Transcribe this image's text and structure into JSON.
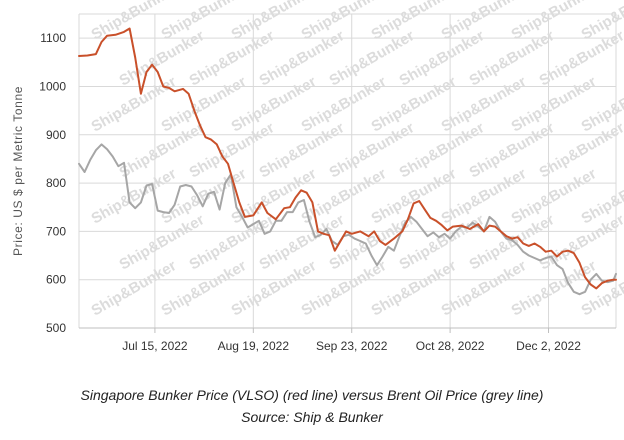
{
  "chart_data": {
    "type": "line",
    "ylabel": "Price: US $ per Metric Tonne",
    "ylim": [
      500,
      1150
    ],
    "yticks": [
      500,
      600,
      700,
      800,
      900,
      1000,
      1100
    ],
    "xlim": [
      "2022-06-18",
      "2022-12-26"
    ],
    "xticks": [
      {
        "date": "2022-07-15",
        "label": "Jul 15, 2022"
      },
      {
        "date": "2022-08-19",
        "label": "Aug 19, 2022"
      },
      {
        "date": "2022-09-23",
        "label": "Sep 23, 2022"
      },
      {
        "date": "2022-10-28",
        "label": "Oct 28, 2022"
      },
      {
        "date": "2022-12-02",
        "label": "Dec 2, 2022"
      }
    ],
    "grid": true,
    "watermark": "Ship&Bunker",
    "series": [
      {
        "color": "#c9502a",
        "points": [
          [
            "2022-06-18",
            1063
          ],
          [
            "2022-06-21",
            1064
          ],
          [
            "2022-06-24",
            1067
          ],
          [
            "2022-06-26",
            1092
          ],
          [
            "2022-06-28",
            1105
          ],
          [
            "2022-07-01",
            1107
          ],
          [
            "2022-07-04",
            1113
          ],
          [
            "2022-07-06",
            1120
          ],
          [
            "2022-07-08",
            1060
          ],
          [
            "2022-07-10",
            985
          ],
          [
            "2022-07-12",
            1030
          ],
          [
            "2022-07-14",
            1045
          ],
          [
            "2022-07-16",
            1030
          ],
          [
            "2022-07-18",
            1000
          ],
          [
            "2022-07-20",
            997
          ],
          [
            "2022-07-22",
            990
          ],
          [
            "2022-07-25",
            995
          ],
          [
            "2022-07-27",
            985
          ],
          [
            "2022-07-29",
            950
          ],
          [
            "2022-07-31",
            920
          ],
          [
            "2022-08-02",
            895
          ],
          [
            "2022-08-04",
            890
          ],
          [
            "2022-08-06",
            880
          ],
          [
            "2022-08-08",
            855
          ],
          [
            "2022-08-10",
            840
          ],
          [
            "2022-08-12",
            800
          ],
          [
            "2022-08-14",
            760
          ],
          [
            "2022-08-16",
            730
          ],
          [
            "2022-08-19",
            733
          ],
          [
            "2022-08-22",
            760
          ],
          [
            "2022-08-24",
            738
          ],
          [
            "2022-08-27",
            725
          ],
          [
            "2022-08-30",
            748
          ],
          [
            "2022-09-01",
            750
          ],
          [
            "2022-09-03",
            770
          ],
          [
            "2022-09-05",
            785
          ],
          [
            "2022-09-07",
            780
          ],
          [
            "2022-09-09",
            760
          ],
          [
            "2022-09-11",
            700
          ],
          [
            "2022-09-13",
            695
          ],
          [
            "2022-09-15",
            692
          ],
          [
            "2022-09-17",
            660
          ],
          [
            "2022-09-19",
            680
          ],
          [
            "2022-09-21",
            700
          ],
          [
            "2022-09-23",
            695
          ],
          [
            "2022-09-26",
            700
          ],
          [
            "2022-09-29",
            690
          ],
          [
            "2022-10-01",
            700
          ],
          [
            "2022-10-03",
            680
          ],
          [
            "2022-10-05",
            672
          ],
          [
            "2022-10-08",
            685
          ],
          [
            "2022-10-11",
            700
          ],
          [
            "2022-10-13",
            725
          ],
          [
            "2022-10-15",
            758
          ],
          [
            "2022-10-17",
            763
          ],
          [
            "2022-10-19",
            745
          ],
          [
            "2022-10-21",
            728
          ],
          [
            "2022-10-23",
            722
          ],
          [
            "2022-10-25",
            713
          ],
          [
            "2022-10-27",
            702
          ],
          [
            "2022-10-29",
            710
          ],
          [
            "2022-11-01",
            712
          ],
          [
            "2022-11-04",
            705
          ],
          [
            "2022-11-07",
            715
          ],
          [
            "2022-11-09",
            700
          ],
          [
            "2022-11-11",
            712
          ],
          [
            "2022-11-13",
            710
          ],
          [
            "2022-11-15",
            700
          ],
          [
            "2022-11-17",
            690
          ],
          [
            "2022-11-19",
            685
          ],
          [
            "2022-11-21",
            688
          ],
          [
            "2022-11-23",
            675
          ],
          [
            "2022-11-25",
            670
          ],
          [
            "2022-11-27",
            675
          ],
          [
            "2022-11-29",
            668
          ],
          [
            "2022-12-01",
            658
          ],
          [
            "2022-12-03",
            660
          ],
          [
            "2022-12-05",
            648
          ],
          [
            "2022-12-07",
            658
          ],
          [
            "2022-12-09",
            660
          ],
          [
            "2022-12-11",
            655
          ],
          [
            "2022-12-13",
            635
          ],
          [
            "2022-12-15",
            605
          ],
          [
            "2022-12-17",
            590
          ],
          [
            "2022-12-19",
            582
          ],
          [
            "2022-12-21",
            593
          ],
          [
            "2022-12-23",
            598
          ],
          [
            "2022-12-25",
            600
          ],
          [
            "2022-12-26",
            600
          ]
        ]
      },
      {
        "color": "#a6a6a6",
        "points": [
          [
            "2022-06-18",
            840
          ],
          [
            "2022-06-20",
            823
          ],
          [
            "2022-06-22",
            848
          ],
          [
            "2022-06-24",
            868
          ],
          [
            "2022-06-26",
            880
          ],
          [
            "2022-06-28",
            870
          ],
          [
            "2022-06-30",
            855
          ],
          [
            "2022-07-02",
            835
          ],
          [
            "2022-07-04",
            842
          ],
          [
            "2022-07-06",
            760
          ],
          [
            "2022-07-08",
            748
          ],
          [
            "2022-07-10",
            760
          ],
          [
            "2022-07-12",
            795
          ],
          [
            "2022-07-14",
            798
          ],
          [
            "2022-07-16",
            743
          ],
          [
            "2022-07-18",
            740
          ],
          [
            "2022-07-20",
            738
          ],
          [
            "2022-07-22",
            755
          ],
          [
            "2022-07-24",
            793
          ],
          [
            "2022-07-26",
            796
          ],
          [
            "2022-07-28",
            793
          ],
          [
            "2022-07-30",
            775
          ],
          [
            "2022-08-01",
            752
          ],
          [
            "2022-08-03",
            778
          ],
          [
            "2022-08-05",
            782
          ],
          [
            "2022-08-07",
            745
          ],
          [
            "2022-08-09",
            800
          ],
          [
            "2022-08-11",
            818
          ],
          [
            "2022-08-13",
            750
          ],
          [
            "2022-08-15",
            730
          ],
          [
            "2022-08-17",
            708
          ],
          [
            "2022-08-19",
            715
          ],
          [
            "2022-08-21",
            722
          ],
          [
            "2022-08-23",
            695
          ],
          [
            "2022-08-25",
            700
          ],
          [
            "2022-08-27",
            722
          ],
          [
            "2022-08-29",
            722
          ],
          [
            "2022-08-31",
            740
          ],
          [
            "2022-09-02",
            740
          ],
          [
            "2022-09-04",
            760
          ],
          [
            "2022-09-06",
            765
          ],
          [
            "2022-09-08",
            720
          ],
          [
            "2022-09-10",
            688
          ],
          [
            "2022-09-12",
            693
          ],
          [
            "2022-09-14",
            705
          ],
          [
            "2022-09-16",
            680
          ],
          [
            "2022-09-18",
            672
          ],
          [
            "2022-09-20",
            690
          ],
          [
            "2022-09-22",
            693
          ],
          [
            "2022-09-24",
            685
          ],
          [
            "2022-09-26",
            680
          ],
          [
            "2022-09-28",
            675
          ],
          [
            "2022-09-30",
            650
          ],
          [
            "2022-10-02",
            630
          ],
          [
            "2022-10-04",
            648
          ],
          [
            "2022-10-06",
            668
          ],
          [
            "2022-10-08",
            660
          ],
          [
            "2022-10-10",
            690
          ],
          [
            "2022-10-12",
            718
          ],
          [
            "2022-10-14",
            730
          ],
          [
            "2022-10-16",
            720
          ],
          [
            "2022-10-18",
            705
          ],
          [
            "2022-10-20",
            690
          ],
          [
            "2022-10-22",
            698
          ],
          [
            "2022-10-24",
            688
          ],
          [
            "2022-10-26",
            695
          ],
          [
            "2022-10-28",
            685
          ],
          [
            "2022-10-30",
            700
          ],
          [
            "2022-11-01",
            710
          ],
          [
            "2022-11-03",
            708
          ],
          [
            "2022-11-05",
            718
          ],
          [
            "2022-11-07",
            710
          ],
          [
            "2022-11-09",
            700
          ],
          [
            "2022-11-11",
            730
          ],
          [
            "2022-11-13",
            720
          ],
          [
            "2022-11-15",
            700
          ],
          [
            "2022-11-17",
            685
          ],
          [
            "2022-11-19",
            682
          ],
          [
            "2022-11-21",
            672
          ],
          [
            "2022-11-23",
            658
          ],
          [
            "2022-11-25",
            650
          ],
          [
            "2022-11-27",
            645
          ],
          [
            "2022-11-29",
            640
          ],
          [
            "2022-12-01",
            645
          ],
          [
            "2022-12-03",
            648
          ],
          [
            "2022-12-05",
            630
          ],
          [
            "2022-12-07",
            622
          ],
          [
            "2022-12-09",
            593
          ],
          [
            "2022-12-11",
            575
          ],
          [
            "2022-12-13",
            570
          ],
          [
            "2022-12-15",
            575
          ],
          [
            "2022-12-17",
            600
          ],
          [
            "2022-12-19",
            612
          ],
          [
            "2022-12-21",
            598
          ],
          [
            "2022-12-23",
            595
          ],
          [
            "2022-12-25",
            598
          ],
          [
            "2022-12-26",
            612
          ]
        ]
      }
    ]
  },
  "caption": {
    "line1": "Singapore Bunker Price (VLSO) (red line) versus Brent Oil Price (grey line)",
    "line2": "Source: Ship & Bunker"
  }
}
